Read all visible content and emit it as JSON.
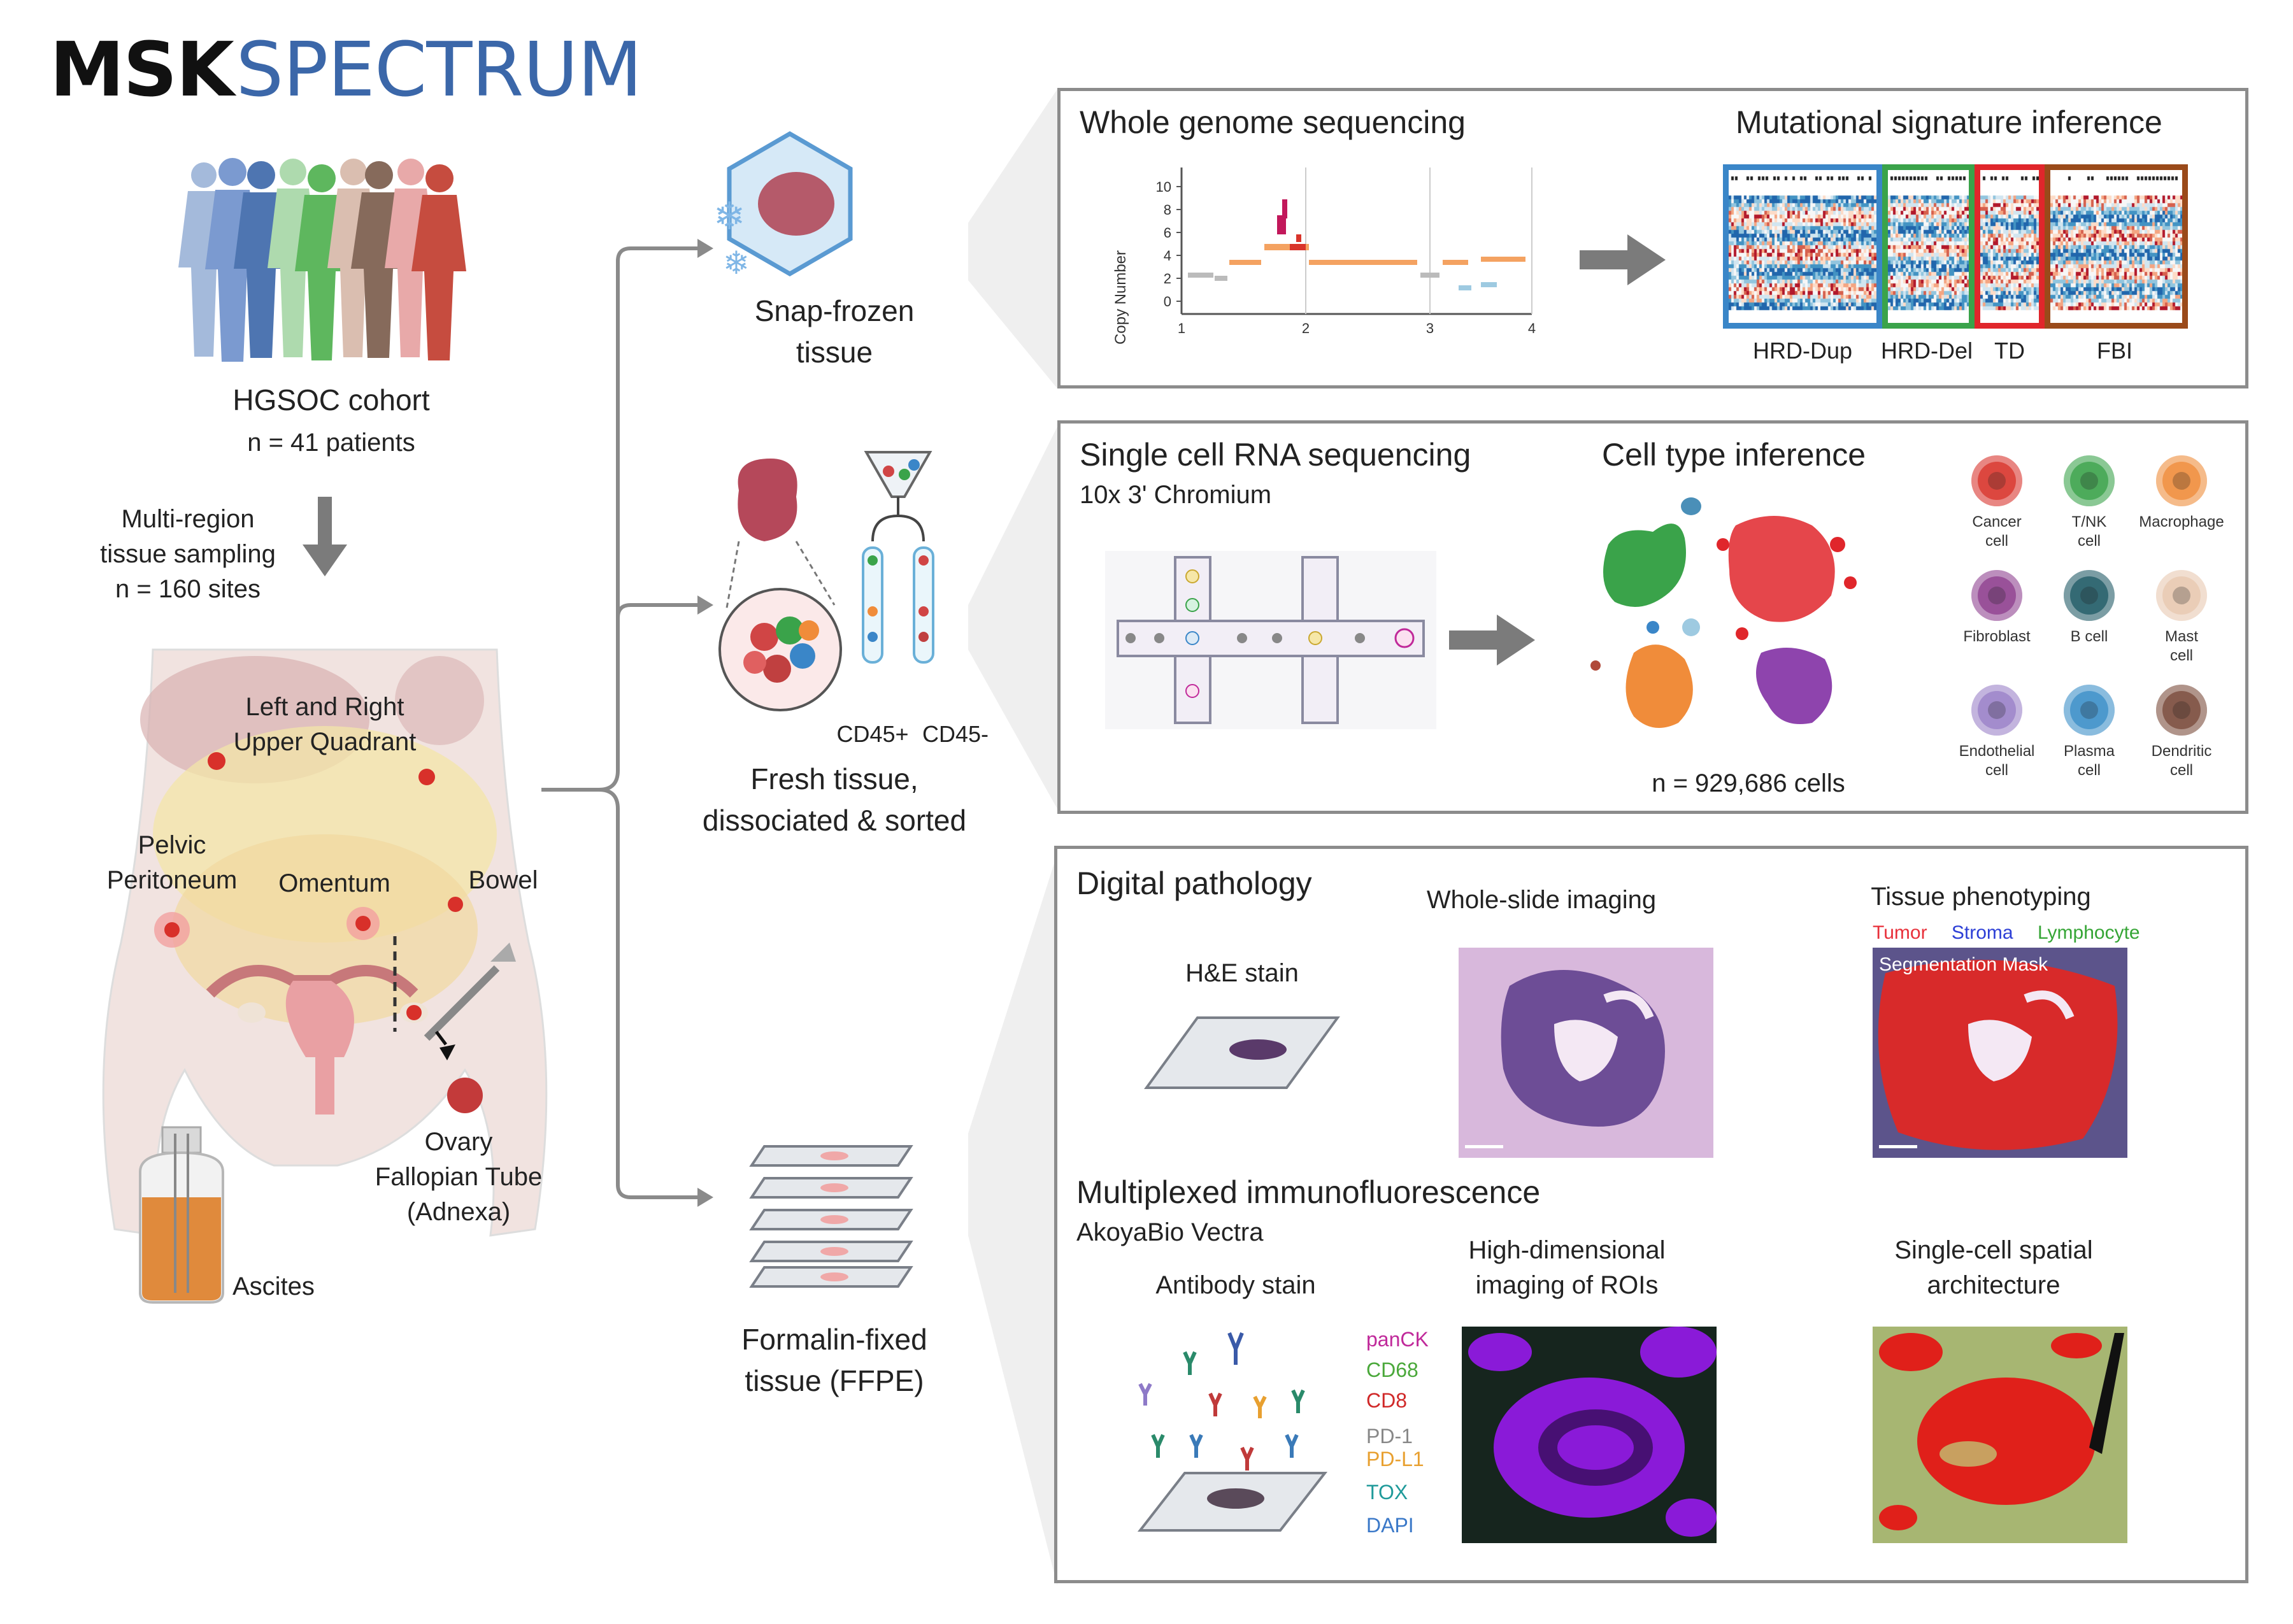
{
  "logo": {
    "part1": "MSK",
    "part2": "SPECTRUM"
  },
  "colors": {
    "brand_blue": "#3b67a9",
    "panel_border": "#8c8c8c",
    "hrd_dup": "#3a86c8",
    "hrd_del": "#3aa34a",
    "td": "#e0262b",
    "fbi": "#9a4a1a",
    "tumor": "#e8303a",
    "stroma": "#2d3fd6",
    "lymphocyte": "#35a535",
    "panck": "#c0299a",
    "cd68": "#4aa83a",
    "cd8": "#d02828",
    "pd1": "#888888",
    "pdl1": "#e8a030",
    "tox": "#1f9a9a",
    "dapi": "#3a78c8"
  },
  "cohort": {
    "title": "HGSOC cohort",
    "count": "n = 41 patients",
    "sampling_line1": "Multi-region",
    "sampling_line2": "tissue sampling",
    "sampling_line3": "n = 160 sites"
  },
  "anatomy": {
    "luq_line1": "Left and Right",
    "luq_line2": "Upper Quadrant",
    "pelvic_line1": "Pelvic",
    "pelvic_line2": "Peritoneum",
    "omentum": "Omentum",
    "bowel": "Bowel",
    "adnexa_line1": "Ovary",
    "adnexa_line2": "Fallopian Tube",
    "adnexa_line3": "(Adnexa)",
    "ascites": "Ascites"
  },
  "processing": {
    "snap_line1": "Snap-frozen",
    "snap_line2": "tissue",
    "fresh_line1": "Fresh tissue,",
    "fresh_line2": "dissociated & sorted",
    "cd45pos": "CD45+",
    "cd45neg": "CD45-",
    "ffpe_line1": "Formalin-fixed",
    "ffpe_line2": "tissue (FFPE)"
  },
  "wgs": {
    "title": "Whole genome sequencing",
    "sig_title": "Mutational signature inference",
    "ylabel": "Copy Number",
    "yticks": [
      "0",
      "2",
      "4",
      "6",
      "8",
      "10"
    ],
    "xticks": [
      "1",
      "2",
      "3",
      "4"
    ],
    "signatures": [
      "HRD-Dup",
      "HRD-Del",
      "TD",
      "FBI"
    ]
  },
  "scrna": {
    "title": "Single cell RNA sequencing",
    "subtitle": "10x 3' Chromium",
    "inference_title": "Cell type inference",
    "count": "n = 929,686 cells",
    "cell_types": [
      {
        "line1": "Cancer",
        "line2": "cell",
        "icon": "cancer-cell-icon",
        "color": "#d9342b"
      },
      {
        "line1": "T/NK",
        "line2": "cell",
        "icon": "tnk-cell-icon",
        "color": "#3aa34a"
      },
      {
        "line1": "Macrophage",
        "line2": "",
        "icon": "macrophage-icon",
        "color": "#f08c3a"
      },
      {
        "line1": "Fibroblast",
        "line2": "",
        "icon": "fibroblast-icon",
        "color": "#8e3f8f"
      },
      {
        "line1": "B cell",
        "line2": "",
        "icon": "b-cell-icon",
        "color": "#1f5a66"
      },
      {
        "line1": "Mast",
        "line2": "cell",
        "icon": "mast-cell-icon",
        "color": "#e8c8b0"
      },
      {
        "line1": "Endothelial",
        "line2": "cell",
        "icon": "endothelial-cell-icon",
        "color": "#9a80c8"
      },
      {
        "line1": "Plasma",
        "line2": "cell",
        "icon": "plasma-cell-icon",
        "color": "#3a8ec8"
      },
      {
        "line1": "Dendritic",
        "line2": "cell",
        "icon": "dendritic-cell-icon",
        "color": "#7a4a3a"
      }
    ]
  },
  "pathology": {
    "title": "Digital pathology",
    "he_stain": "H&E stain",
    "wsi": "Whole-slide imaging",
    "phenotyping": "Tissue phenotyping",
    "legend_tumor": "Tumor",
    "legend_stroma": "Stroma",
    "legend_lymph": "Lymphocyte",
    "seg_mask": "Segmentation Mask",
    "mif_title": "Multiplexed immunofluorescence",
    "mif_sub": "AkoyaBio Vectra",
    "antibody": "Antibody stain",
    "hd_line1": "High-dimensional",
    "hd_line2": "imaging of ROIs",
    "sc_line1": "Single-cell spatial",
    "sc_line2": "architecture",
    "markers": [
      "panCK",
      "CD68",
      "CD8",
      "PD-1",
      "PD-L1",
      "TOX",
      "DAPI"
    ]
  }
}
